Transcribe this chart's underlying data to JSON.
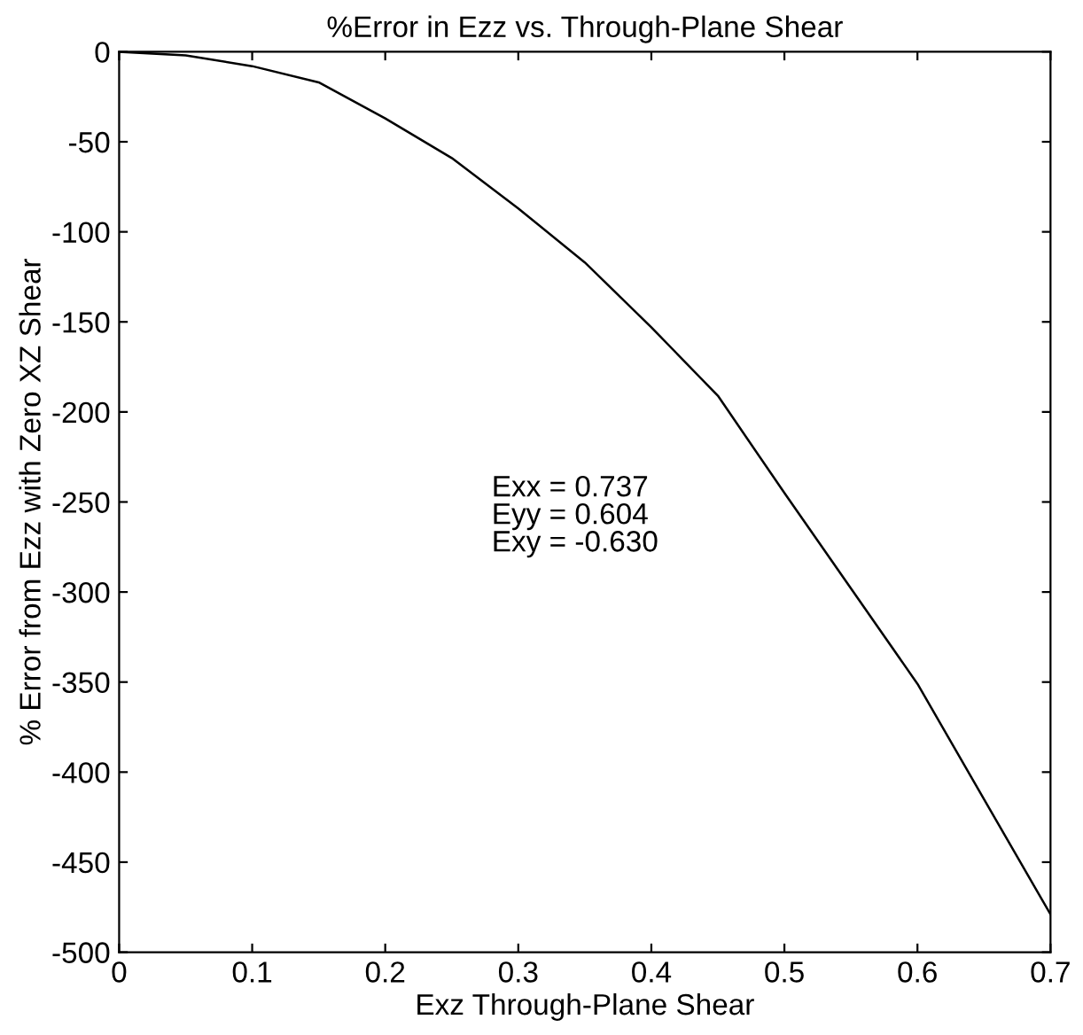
{
  "chart_data": {
    "type": "line",
    "title": "%Error in Ezz vs. Through-Plane Shear",
    "xlabel": "Exz Through-Plane Shear",
    "ylabel": "% Error from Ezz with Zero XZ Shear",
    "x": [
      0,
      0.05,
      0.1,
      0.15,
      0.2,
      0.25,
      0.3,
      0.35,
      0.4,
      0.45,
      0.5,
      0.55,
      0.6,
      0.65,
      0.7
    ],
    "series": [
      {
        "color": "#000000",
        "values": [
          0,
          -2,
          -8,
          -17,
          -37,
          -59,
          -87,
          -117,
          -153,
          -191,
          -245,
          -298,
          -351,
          -415,
          -479
        ]
      }
    ],
    "xlim": [
      0,
      0.7
    ],
    "xticks": [
      0,
      0.1,
      0.2,
      0.3,
      0.4,
      0.5,
      0.6,
      0.7
    ],
    "ylim": [
      -500,
      0
    ],
    "yticks": [
      -500,
      -450,
      -400,
      -350,
      -300,
      -250,
      -200,
      -150,
      -100,
      -50,
      0
    ],
    "annotations": [
      "Exx = 0.737\nEyy = 0.604\nExy = -0.630"
    ],
    "grid": false,
    "marker": "none",
    "line_style": "solid"
  }
}
